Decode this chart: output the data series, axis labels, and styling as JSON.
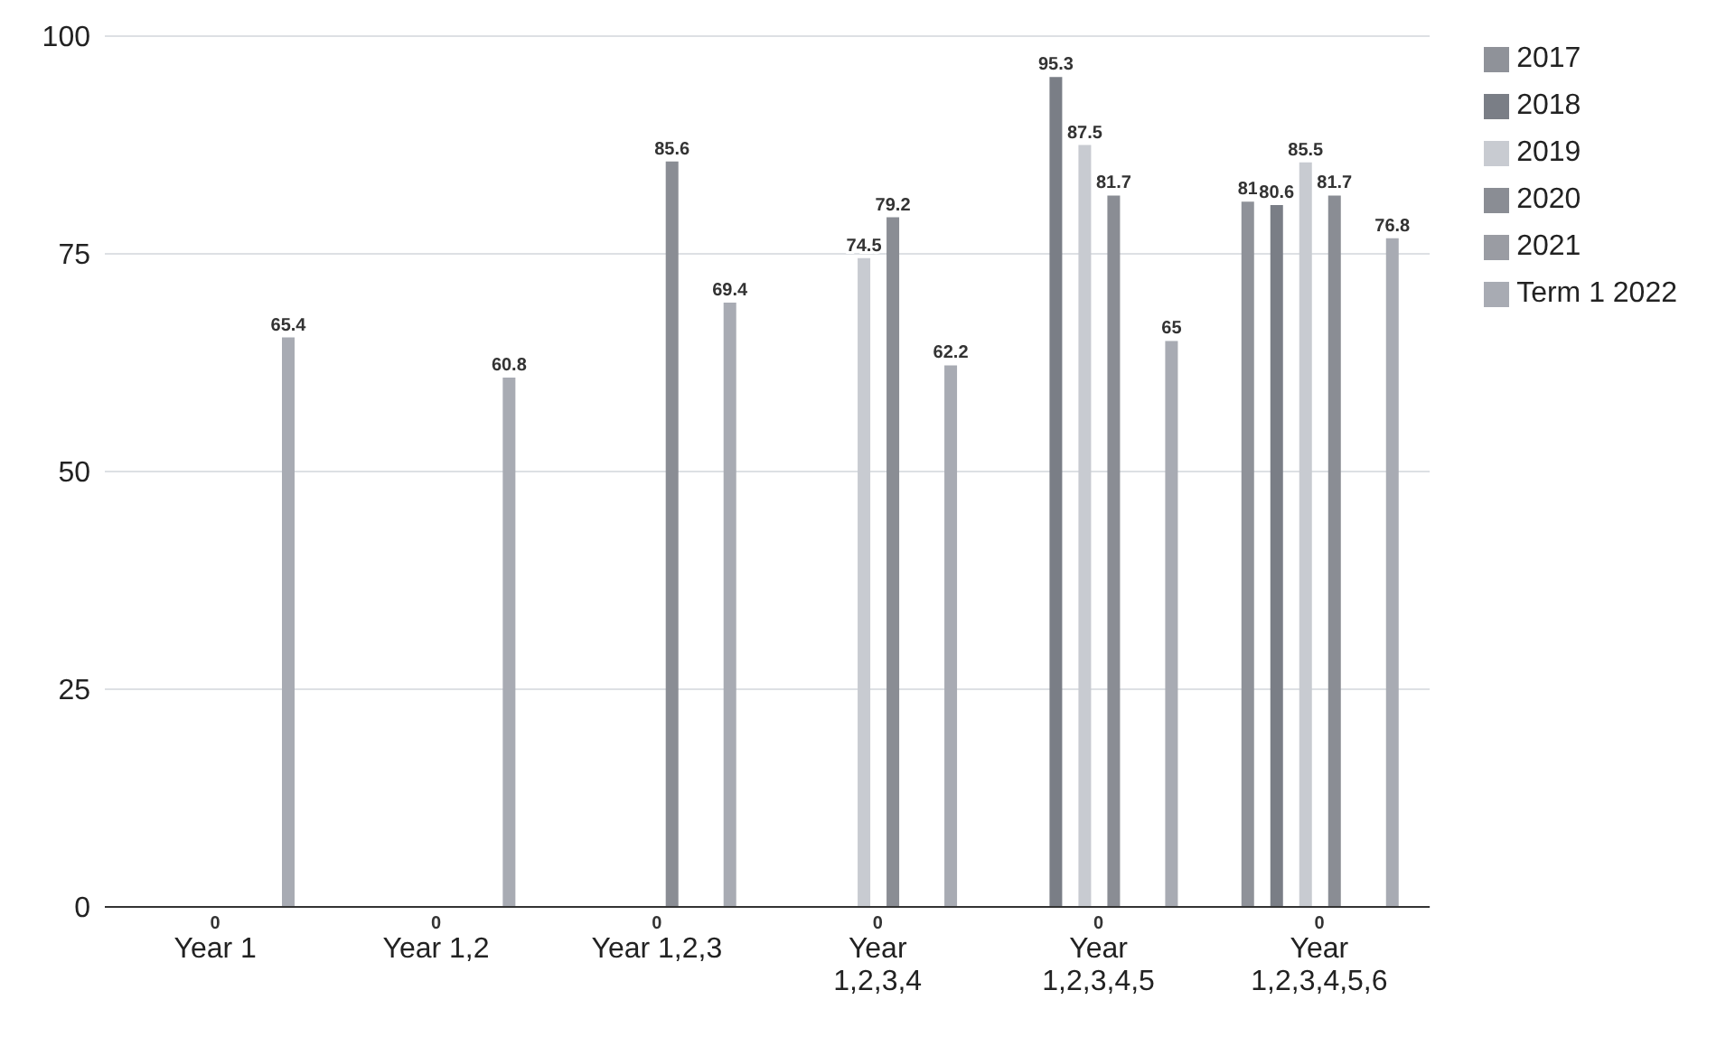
{
  "chart_data": {
    "type": "bar",
    "categories": [
      "Year 1",
      "Year 1,2",
      "Year 1,2,3",
      "Year 1,2,3,4",
      "Year 1,2,3,4,5",
      "Year 1,2,3,4,5,6"
    ],
    "series": [
      {
        "name": "2017",
        "color": "#8f9299",
        "values": [
          null,
          null,
          null,
          null,
          null,
          81
        ]
      },
      {
        "name": "2018",
        "color": "#7a7e86",
        "values": [
          null,
          null,
          null,
          null,
          95.3,
          80.6
        ]
      },
      {
        "name": "2019",
        "color": "#c8cbd1",
        "values": [
          null,
          null,
          null,
          74.5,
          87.5,
          85.5
        ]
      },
      {
        "name": "2020",
        "color": "#8a8d94",
        "values": [
          null,
          null,
          85.6,
          79.2,
          81.7,
          81.7
        ]
      },
      {
        "name": "2021",
        "color": "#9a9ca3",
        "values": [
          0,
          0,
          0,
          0,
          0,
          0
        ]
      },
      {
        "name": "Term 1 2022",
        "color": "#a8abb3",
        "values": [
          65.4,
          60.8,
          69.4,
          62.2,
          65,
          76.8
        ]
      }
    ],
    "ylim": [
      0,
      100
    ],
    "yticks": [
      0,
      25,
      50,
      75,
      100
    ],
    "grid": "y",
    "legend": "right",
    "data_labels": true
  }
}
